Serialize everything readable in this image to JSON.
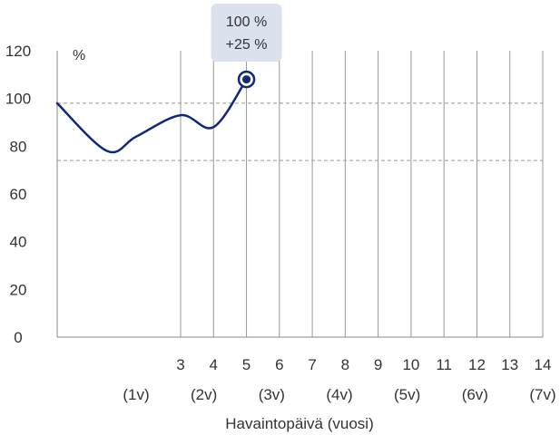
{
  "chart_data": {
    "type": "line",
    "xlabel": "Havaintopäivä (vuosi)",
    "ylabel": "%",
    "ylim": [
      0,
      120
    ],
    "yticks": [
      0,
      20,
      40,
      60,
      80,
      100,
      120
    ],
    "xticks": [
      "3",
      "4",
      "5",
      "6",
      "7",
      "8",
      "9",
      "10",
      "11",
      "12",
      "13",
      "14"
    ],
    "year_labels": [
      "(1v)",
      "(2v)",
      "(3v)",
      "(4v)",
      "(5v)",
      "(6v)",
      "(7v)"
    ],
    "reference_lines": [
      98,
      74
    ],
    "grid": "vertical lines at each x tick",
    "series": [
      {
        "x": [
          "",
          "",
          "",
          "3",
          "4",
          "5"
        ],
        "y": [
          98,
          78,
          84,
          93,
          88,
          108
        ]
      }
    ],
    "annotation": {
      "line1": "100 %",
      "line2": "+25 %"
    },
    "colors": {
      "line": "#0d2a7a",
      "grid": "#999999",
      "reference": "#999999",
      "annotation_bg": "#dbe2ee"
    }
  }
}
